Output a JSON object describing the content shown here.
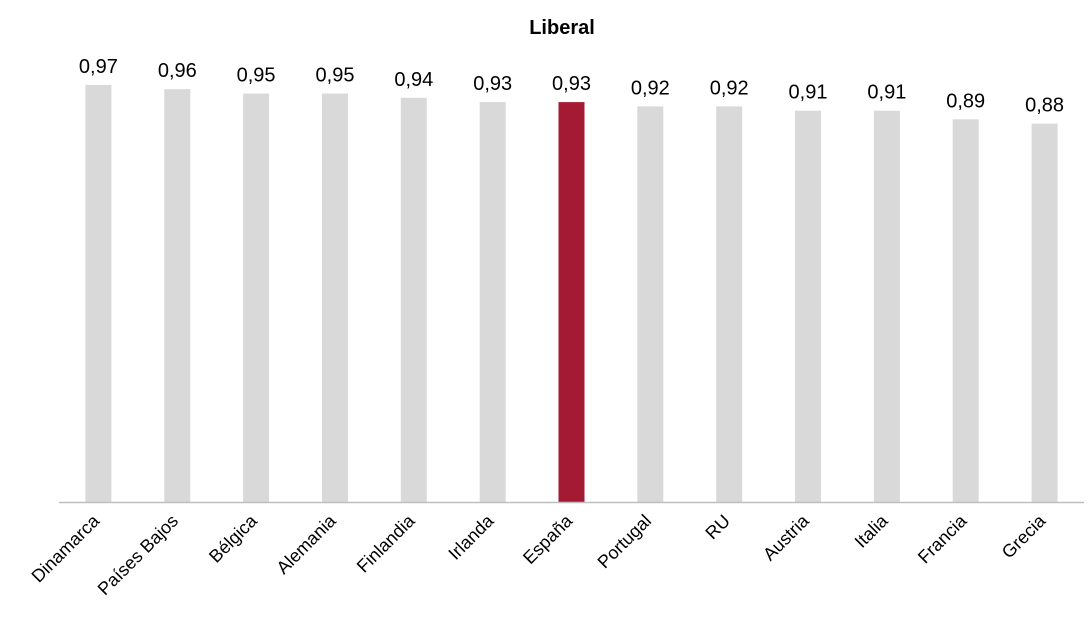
{
  "chart_data": {
    "type": "bar",
    "title": "Liberal",
    "xlabel": "",
    "ylabel": "",
    "categories": [
      "Dinamarca",
      "Países Bajos",
      "Bélgica",
      "Alemania",
      "Finlandia",
      "Irlanda",
      "España",
      "Portugal",
      "RU",
      "Austria",
      "Italia",
      "Francia",
      "Grecia"
    ],
    "values": [
      0.97,
      0.96,
      0.95,
      0.95,
      0.94,
      0.93,
      0.93,
      0.92,
      0.92,
      0.91,
      0.91,
      0.89,
      0.88
    ],
    "value_labels": [
      "0,97",
      "0,96",
      "0,95",
      "0,95",
      "0,94",
      "0,93",
      "0,93",
      "0,92",
      "0,92",
      "0,91",
      "0,91",
      "0,89",
      "0,88"
    ],
    "highlight_category": "España",
    "ylim": [
      0,
      1
    ],
    "grid": false,
    "legend": "none",
    "colors": {
      "bar": "#d9d9d9",
      "highlight": "#a51a33",
      "axis": "#bfbfbf",
      "text": "#000000"
    }
  }
}
